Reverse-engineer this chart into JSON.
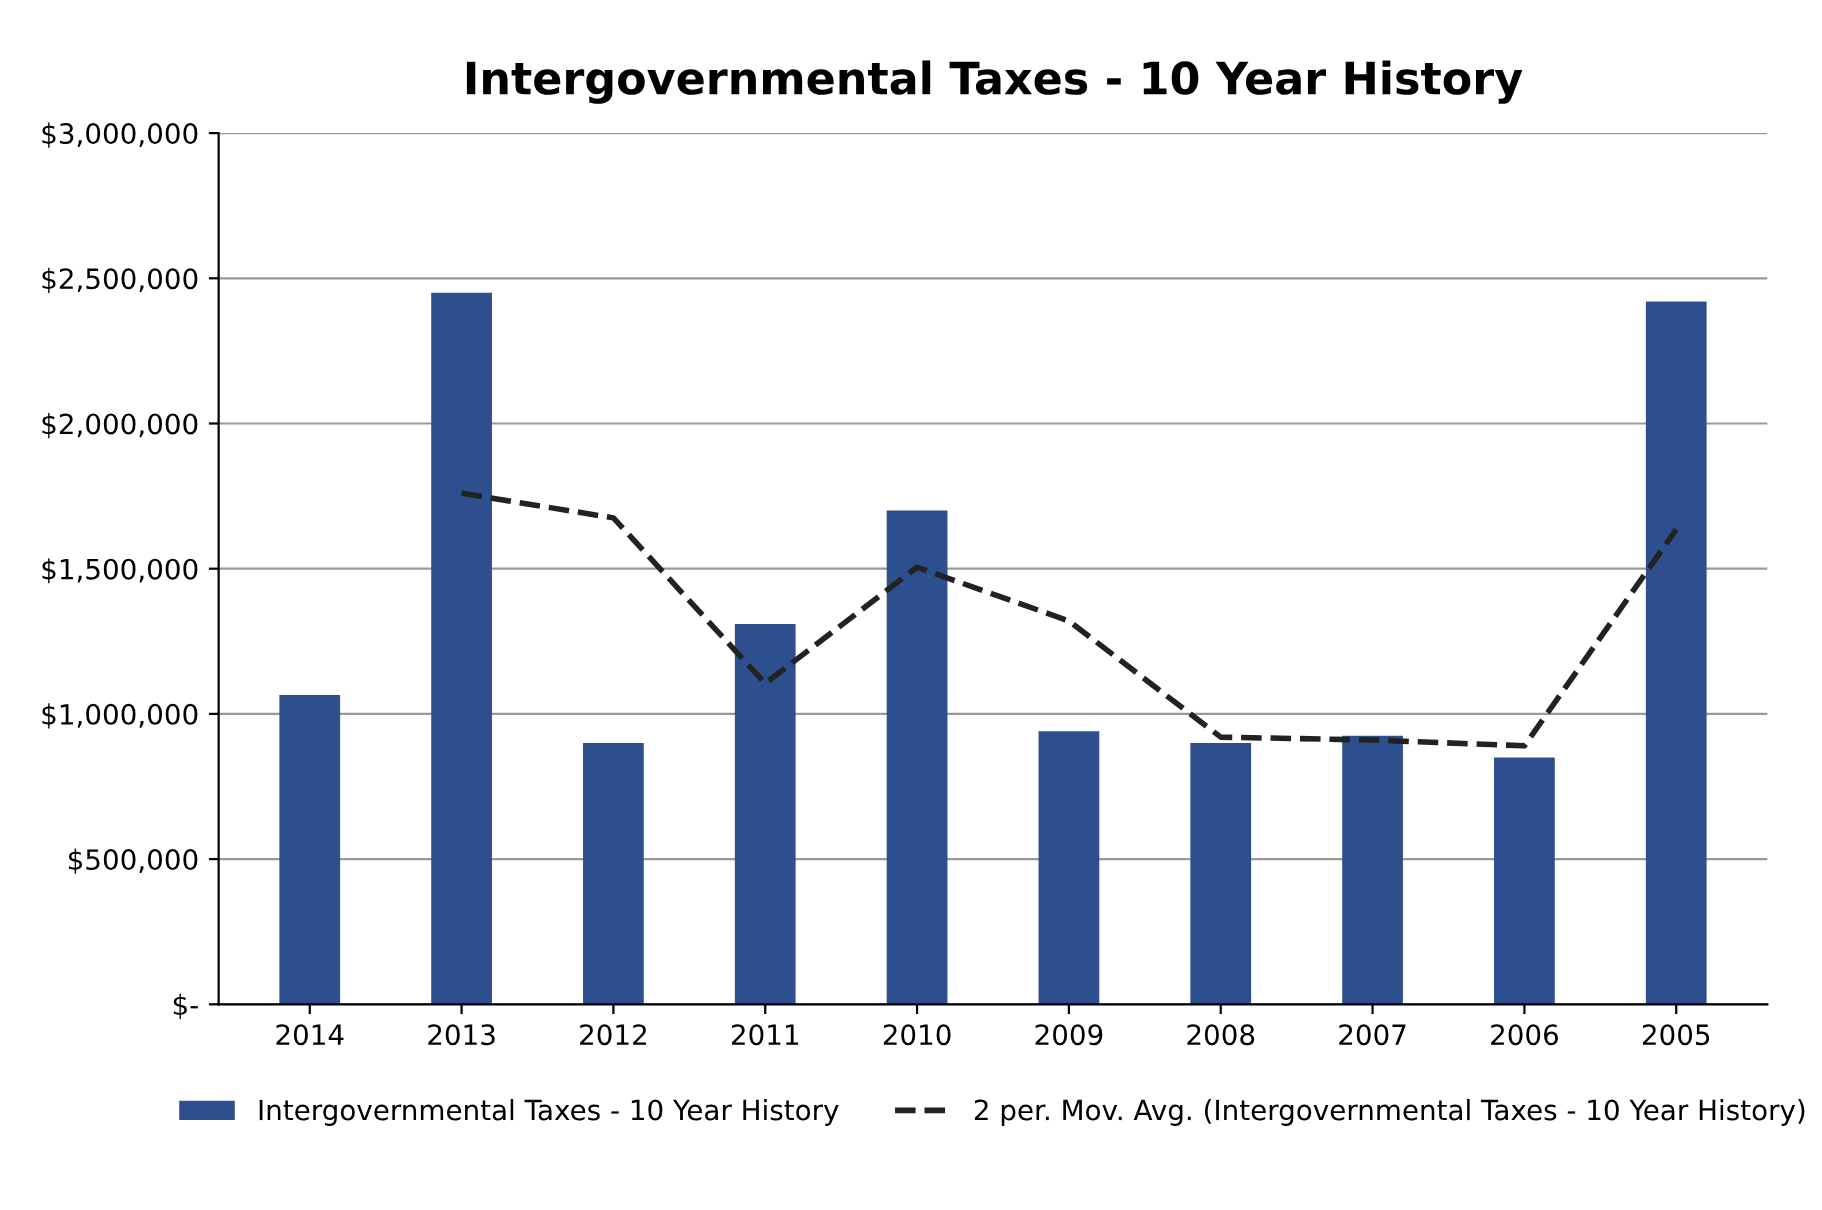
{
  "chart_data": {
    "type": "bar",
    "title": "Intergovernmental Taxes - 10 Year History",
    "categories": [
      "2014",
      "2013",
      "2012",
      "2011",
      "2010",
      "2009",
      "2008",
      "2007",
      "2006",
      "2005"
    ],
    "series": [
      {
        "name": "Intergovernmental Taxes - 10 Year History",
        "color": "#2d4f8e",
        "values": [
          1065000,
          2450000,
          900000,
          1310000,
          1700000,
          940000,
          900000,
          925000,
          850000,
          2420000
        ]
      },
      {
        "name": "2 per. Mov. Avg. (Intergovernmental Taxes - 10 Year History)",
        "type": "line",
        "color": "#222222",
        "line_style": "dashed",
        "values": [
          null,
          1760000,
          1675000,
          1105000,
          1505000,
          1320000,
          920000,
          910000,
          890000,
          1635000
        ]
      }
    ],
    "ylim": [
      0,
      3000000
    ],
    "yticks": [
      {
        "value": 0,
        "label": "$-"
      },
      {
        "value": 500000,
        "label": "$500,000"
      },
      {
        "value": 1000000,
        "label": "$1,000,000"
      },
      {
        "value": 1500000,
        "label": "$1,500,000"
      },
      {
        "value": 2000000,
        "label": "$2,000,000"
      },
      {
        "value": 2500000,
        "label": "$2,500,000"
      },
      {
        "value": 3000000,
        "label": "$3,000,000"
      }
    ],
    "grid": "y",
    "legend": "bottom"
  }
}
